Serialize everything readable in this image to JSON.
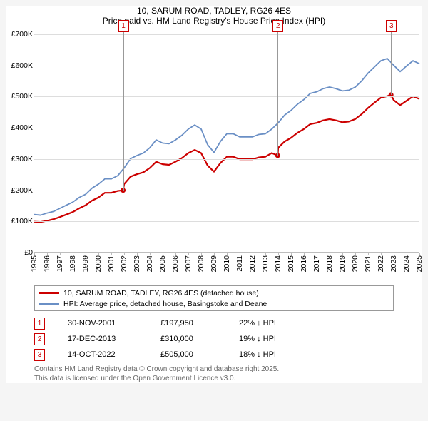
{
  "title": {
    "line1": "10, SARUM ROAD, TADLEY, RG26 4ES",
    "line2": "Price paid vs. HM Land Registry's House Price Index (HPI)"
  },
  "chart": {
    "type": "line",
    "background_color": "#ffffff",
    "grid_color": "#dddddd",
    "axis_color": "#bdbdbd",
    "label_fontsize": 10.5,
    "x_years": [
      1995,
      1996,
      1997,
      1998,
      1999,
      2000,
      2001,
      2002,
      2003,
      2004,
      2005,
      2006,
      2007,
      2008,
      2009,
      2010,
      2011,
      2012,
      2013,
      2014,
      2015,
      2016,
      2017,
      2018,
      2019,
      2020,
      2021,
      2022,
      2023,
      2024,
      2025
    ],
    "ylim": [
      0,
      700
    ],
    "ytick_labels": [
      "£0",
      "£100K",
      "£200K",
      "£300K",
      "£400K",
      "£500K",
      "£600K",
      "£700K"
    ],
    "ytick_values": [
      0,
      100,
      200,
      300,
      400,
      500,
      600,
      700
    ],
    "series": [
      {
        "id": "hpi",
        "label": "HPI: Average price, detached house, Basingstoke and Deane",
        "color": "#6a8fc5",
        "width": 1.8,
        "points": [
          [
            1995.0,
            120
          ],
          [
            1995.5,
            118
          ],
          [
            1996.0,
            125
          ],
          [
            1996.5,
            130
          ],
          [
            1997.0,
            140
          ],
          [
            1997.5,
            150
          ],
          [
            1998.0,
            160
          ],
          [
            1998.5,
            175
          ],
          [
            1999.0,
            185
          ],
          [
            1999.5,
            205
          ],
          [
            2000.0,
            218
          ],
          [
            2000.5,
            235
          ],
          [
            2001.0,
            235
          ],
          [
            2001.5,
            245
          ],
          [
            2002.0,
            270
          ],
          [
            2002.5,
            300
          ],
          [
            2003.0,
            310
          ],
          [
            2003.5,
            318
          ],
          [
            2004.0,
            335
          ],
          [
            2004.5,
            360
          ],
          [
            2005.0,
            350
          ],
          [
            2005.5,
            348
          ],
          [
            2006.0,
            360
          ],
          [
            2006.5,
            375
          ],
          [
            2007.0,
            395
          ],
          [
            2007.5,
            408
          ],
          [
            2008.0,
            395
          ],
          [
            2008.5,
            345
          ],
          [
            2009.0,
            320
          ],
          [
            2009.5,
            355
          ],
          [
            2010.0,
            380
          ],
          [
            2010.5,
            380
          ],
          [
            2011.0,
            370
          ],
          [
            2011.5,
            370
          ],
          [
            2012.0,
            370
          ],
          [
            2012.5,
            378
          ],
          [
            2013.0,
            380
          ],
          [
            2013.5,
            395
          ],
          [
            2014.0,
            415
          ],
          [
            2014.5,
            440
          ],
          [
            2015.0,
            455
          ],
          [
            2015.5,
            475
          ],
          [
            2016.0,
            490
          ],
          [
            2016.5,
            510
          ],
          [
            2017.0,
            515
          ],
          [
            2017.5,
            525
          ],
          [
            2018.0,
            530
          ],
          [
            2018.5,
            525
          ],
          [
            2019.0,
            518
          ],
          [
            2019.5,
            520
          ],
          [
            2020.0,
            530
          ],
          [
            2020.5,
            550
          ],
          [
            2021.0,
            575
          ],
          [
            2021.5,
            595
          ],
          [
            2022.0,
            615
          ],
          [
            2022.5,
            622
          ],
          [
            2023.0,
            600
          ],
          [
            2023.5,
            580
          ],
          [
            2024.0,
            598
          ],
          [
            2024.5,
            615
          ],
          [
            2025.0,
            605
          ]
        ]
      },
      {
        "id": "property",
        "label": "10, SARUM ROAD, TADLEY, RG26 4ES (detached house)",
        "color": "#cc0000",
        "width": 2.2,
        "points": [
          [
            1995.0,
            97
          ],
          [
            1995.5,
            96
          ],
          [
            1996.0,
            100
          ],
          [
            1996.5,
            105
          ],
          [
            1997.0,
            112
          ],
          [
            1997.5,
            120
          ],
          [
            1998.0,
            128
          ],
          [
            1998.5,
            140
          ],
          [
            1999.0,
            150
          ],
          [
            1999.5,
            165
          ],
          [
            2000.0,
            175
          ],
          [
            2000.5,
            190
          ],
          [
            2001.0,
            190
          ],
          [
            2001.5,
            196
          ],
          [
            2001.92,
            198
          ],
          [
            2002.0,
            218
          ],
          [
            2002.5,
            242
          ],
          [
            2003.0,
            250
          ],
          [
            2003.5,
            256
          ],
          [
            2004.0,
            270
          ],
          [
            2004.5,
            290
          ],
          [
            2005.0,
            282
          ],
          [
            2005.5,
            280
          ],
          [
            2006.0,
            290
          ],
          [
            2006.5,
            302
          ],
          [
            2007.0,
            318
          ],
          [
            2007.5,
            328
          ],
          [
            2008.0,
            318
          ],
          [
            2008.5,
            278
          ],
          [
            2009.0,
            258
          ],
          [
            2009.5,
            286
          ],
          [
            2010.0,
            306
          ],
          [
            2010.5,
            306
          ],
          [
            2011.0,
            298
          ],
          [
            2011.5,
            298
          ],
          [
            2012.0,
            298
          ],
          [
            2012.5,
            304
          ],
          [
            2013.0,
            306
          ],
          [
            2013.5,
            318
          ],
          [
            2013.96,
            310
          ],
          [
            2014.0,
            335
          ],
          [
            2014.5,
            355
          ],
          [
            2015.0,
            367
          ],
          [
            2015.5,
            383
          ],
          [
            2016.0,
            395
          ],
          [
            2016.5,
            411
          ],
          [
            2017.0,
            415
          ],
          [
            2017.5,
            423
          ],
          [
            2018.0,
            427
          ],
          [
            2018.5,
            423
          ],
          [
            2019.0,
            417
          ],
          [
            2019.5,
            419
          ],
          [
            2020.0,
            427
          ],
          [
            2020.5,
            443
          ],
          [
            2021.0,
            463
          ],
          [
            2021.5,
            480
          ],
          [
            2022.0,
            496
          ],
          [
            2022.5,
            501
          ],
          [
            2022.79,
            505
          ],
          [
            2023.0,
            488
          ],
          [
            2023.5,
            472
          ],
          [
            2024.0,
            486
          ],
          [
            2024.5,
            500
          ],
          [
            2025.0,
            492
          ]
        ]
      }
    ],
    "markers": [
      {
        "n": "1",
        "x": 2001.92,
        "y": 198,
        "color": "#cc0000"
      },
      {
        "n": "2",
        "x": 2013.96,
        "y": 310,
        "color": "#cc0000"
      },
      {
        "n": "3",
        "x": 2022.79,
        "y": 505,
        "color": "#cc0000"
      }
    ]
  },
  "legend": [
    {
      "color": "#cc0000",
      "text": "10, SARUM ROAD, TADLEY, RG26 4ES (detached house)"
    },
    {
      "color": "#6a8fc5",
      "text": "HPI: Average price, detached house, Basingstoke and Deane"
    }
  ],
  "sales": [
    {
      "n": "1",
      "date": "30-NOV-2001",
      "price": "£197,950",
      "delta": "22% ↓ HPI"
    },
    {
      "n": "2",
      "date": "17-DEC-2013",
      "price": "£310,000",
      "delta": "19% ↓ HPI"
    },
    {
      "n": "3",
      "date": "14-OCT-2022",
      "price": "£505,000",
      "delta": "18% ↓ HPI"
    }
  ],
  "footer": {
    "line1": "Contains HM Land Registry data © Crown copyright and database right 2025.",
    "line2": "This data is licensed under the Open Government Licence v3.0."
  }
}
